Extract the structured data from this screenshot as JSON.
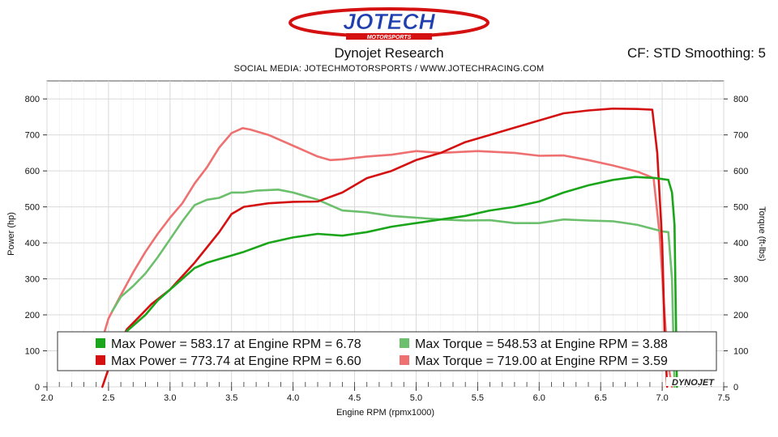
{
  "header": {
    "brand": "JOTECH",
    "brand_sub": "MOTORSPORTS",
    "title": "Dynojet Research",
    "settings": "CF: STD Smoothing: 5",
    "social": "SOCIAL MEDIA: JOTECHMOTORSPORTS    /    WWW.JOTECHRACING.COM"
  },
  "colors": {
    "green_power": "#1aa51a",
    "red_power": "#d41010",
    "green_torque": "#6cbf6c",
    "red_torque": "#ee7070",
    "grid": "#d9d9d9",
    "minor_grid": "#eeeeee"
  },
  "chart_data": {
    "type": "line",
    "title": "Dynojet Research",
    "xlabel": "Engine RPM (rpmx1000)",
    "ylabel_left": "Power (hp)",
    "ylabel_right": "Torque (ft-lbs)",
    "xlim": [
      2.0,
      7.5
    ],
    "ylim": [
      0,
      850
    ],
    "x_ticks": [
      "2.0",
      "2.5",
      "3.0",
      "3.5",
      "4.0",
      "4.5",
      "5.0",
      "5.5",
      "6.0",
      "6.5",
      "7.0",
      "7.5"
    ],
    "y_ticks": [
      "0",
      "100",
      "200",
      "300",
      "400",
      "500",
      "600",
      "700",
      "800"
    ],
    "grid": true,
    "watermark": "DYNOJET",
    "legend": [
      {
        "color_key": "green_power",
        "text": "Max Power = 583.17 at Engine RPM = 6.78"
      },
      {
        "color_key": "green_torque",
        "text": "Max Torque = 548.53 at Engine RPM = 3.88"
      },
      {
        "color_key": "red_power",
        "text": "Max Power = 773.74 at Engine RPM = 6.60"
      },
      {
        "color_key": "red_torque",
        "text": "Max Torque = 719.00 at Engine RPM = 3.59"
      }
    ],
    "series": [
      {
        "color_key": "red_torque",
        "x": [
          2.43,
          2.5,
          2.6,
          2.7,
          2.8,
          2.9,
          3.0,
          3.1,
          3.2,
          3.3,
          3.4,
          3.5,
          3.59,
          3.65,
          3.8,
          4.0,
          4.2,
          4.3,
          4.4,
          4.6,
          4.8,
          5.0,
          5.2,
          5.5,
          5.8,
          6.0,
          6.2,
          6.4,
          6.6,
          6.8,
          6.93,
          6.98,
          7.02,
          7.05,
          7.08
        ],
        "y": [
          110,
          190,
          255,
          318,
          375,
          425,
          470,
          510,
          565,
          610,
          665,
          705,
          719,
          715,
          700,
          670,
          640,
          630,
          632,
          640,
          645,
          655,
          650,
          655,
          650,
          642,
          643,
          630,
          615,
          598,
          580,
          420,
          200,
          60,
          0
        ]
      },
      {
        "color_key": "green_torque",
        "x": [
          2.53,
          2.6,
          2.7,
          2.8,
          2.9,
          3.0,
          3.1,
          3.2,
          3.3,
          3.4,
          3.5,
          3.6,
          3.7,
          3.88,
          4.0,
          4.2,
          4.4,
          4.6,
          4.8,
          5.0,
          5.2,
          5.4,
          5.6,
          5.8,
          6.0,
          6.2,
          6.4,
          6.6,
          6.8,
          7.0,
          7.05,
          7.08,
          7.1
        ],
        "y": [
          210,
          250,
          280,
          315,
          360,
          410,
          460,
          505,
          520,
          525,
          540,
          540,
          545,
          548,
          540,
          520,
          490,
          485,
          475,
          470,
          465,
          462,
          463,
          455,
          455,
          465,
          462,
          460,
          450,
          432,
          430,
          300,
          0
        ]
      },
      {
        "color_key": "red_power",
        "x": [
          2.45,
          2.55,
          2.65,
          2.75,
          2.85,
          3.0,
          3.2,
          3.4,
          3.5,
          3.6,
          3.8,
          4.0,
          4.2,
          4.4,
          4.6,
          4.8,
          5.0,
          5.2,
          5.4,
          5.6,
          5.8,
          6.0,
          6.2,
          6.4,
          6.6,
          6.8,
          6.92,
          6.96,
          7.0,
          7.02,
          7.04
        ],
        "y": [
          0,
          100,
          160,
          195,
          230,
          270,
          345,
          430,
          480,
          500,
          510,
          514,
          515,
          540,
          580,
          600,
          630,
          650,
          680,
          700,
          720,
          740,
          760,
          768,
          773,
          772,
          770,
          650,
          400,
          150,
          0
        ]
      },
      {
        "color_key": "green_power",
        "x": [
          2.6,
          2.7,
          2.8,
          2.9,
          3.0,
          3.1,
          3.2,
          3.3,
          3.4,
          3.5,
          3.6,
          3.8,
          4.0,
          4.2,
          4.4,
          4.6,
          4.8,
          5.0,
          5.2,
          5.4,
          5.6,
          5.8,
          6.0,
          6.2,
          6.4,
          6.6,
          6.78,
          6.95,
          7.05,
          7.08,
          7.1,
          7.12
        ],
        "y": [
          140,
          170,
          200,
          240,
          270,
          300,
          330,
          345,
          355,
          365,
          375,
          400,
          415,
          425,
          420,
          430,
          445,
          455,
          465,
          475,
          490,
          500,
          515,
          540,
          560,
          575,
          583,
          580,
          575,
          540,
          450,
          0
        ]
      }
    ]
  }
}
